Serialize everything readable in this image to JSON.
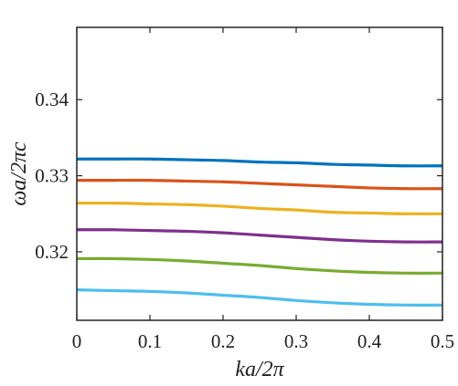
{
  "chart_data": {
    "type": "line",
    "title": "",
    "xlabel": "ka/2π",
    "ylabel": "ωa/2πc",
    "xlim": [
      0,
      0.5
    ],
    "ylim": [
      0.311,
      0.3495
    ],
    "xticks": [
      0,
      0.1,
      0.2,
      0.3,
      0.4,
      0.5
    ],
    "xtick_labels": [
      "0",
      "0.1",
      "0.2",
      "0.3",
      "0.4",
      "0.5"
    ],
    "yticks": [
      0.32,
      0.33,
      0.34
    ],
    "ytick_labels": [
      "0.32",
      "0.33",
      "0.34"
    ],
    "grid": false,
    "legend": false,
    "x": [
      0,
      0.05,
      0.1,
      0.15,
      0.2,
      0.25,
      0.3,
      0.35,
      0.4,
      0.45,
      0.5
    ],
    "series": [
      {
        "color": "#0072BD",
        "values": [
          0.3322,
          0.3322,
          0.3322,
          0.3321,
          0.332,
          0.3318,
          0.3317,
          0.3315,
          0.3314,
          0.3313,
          0.3313
        ]
      },
      {
        "color": "#D95319",
        "values": [
          0.3294,
          0.3294,
          0.3294,
          0.3293,
          0.3292,
          0.329,
          0.3288,
          0.3286,
          0.3284,
          0.3283,
          0.3283
        ]
      },
      {
        "color": "#EDB120",
        "values": [
          0.3264,
          0.3264,
          0.3263,
          0.3262,
          0.326,
          0.3257,
          0.3255,
          0.3252,
          0.3251,
          0.325,
          0.325
        ]
      },
      {
        "color": "#7E2F8E",
        "values": [
          0.3229,
          0.3229,
          0.3228,
          0.3227,
          0.3225,
          0.3222,
          0.3219,
          0.3216,
          0.3214,
          0.3213,
          0.3213
        ]
      },
      {
        "color": "#77AC30",
        "values": [
          0.3191,
          0.3191,
          0.319,
          0.3188,
          0.3185,
          0.3182,
          0.3178,
          0.3175,
          0.3173,
          0.3172,
          0.3172
        ]
      },
      {
        "color": "#4DBEEE",
        "values": [
          0.315,
          0.3149,
          0.3148,
          0.3146,
          0.3143,
          0.314,
          0.3136,
          0.3133,
          0.3131,
          0.313,
          0.313
        ]
      }
    ]
  }
}
